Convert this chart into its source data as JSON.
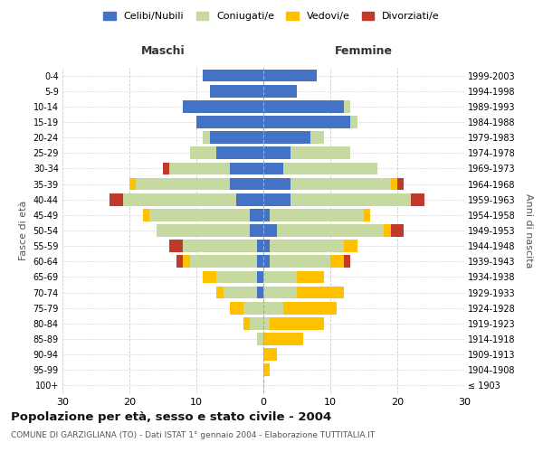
{
  "age_groups": [
    "100+",
    "95-99",
    "90-94",
    "85-89",
    "80-84",
    "75-79",
    "70-74",
    "65-69",
    "60-64",
    "55-59",
    "50-54",
    "45-49",
    "40-44",
    "35-39",
    "30-34",
    "25-29",
    "20-24",
    "15-19",
    "10-14",
    "5-9",
    "0-4"
  ],
  "birth_years": [
    "≤ 1903",
    "1904-1908",
    "1909-1913",
    "1914-1918",
    "1919-1923",
    "1924-1928",
    "1929-1933",
    "1934-1938",
    "1939-1943",
    "1944-1948",
    "1949-1953",
    "1954-1958",
    "1959-1963",
    "1964-1968",
    "1969-1973",
    "1974-1978",
    "1979-1983",
    "1984-1988",
    "1989-1993",
    "1994-1998",
    "1999-2003"
  ],
  "maschi": {
    "celibi": [
      0,
      0,
      0,
      0,
      0,
      0,
      1,
      1,
      1,
      1,
      2,
      2,
      4,
      5,
      5,
      7,
      8,
      10,
      12,
      8,
      9
    ],
    "coniugati": [
      0,
      0,
      0,
      1,
      2,
      3,
      5,
      6,
      10,
      11,
      14,
      15,
      17,
      14,
      9,
      4,
      1,
      0,
      0,
      0,
      0
    ],
    "vedovi": [
      0,
      0,
      0,
      0,
      1,
      2,
      1,
      2,
      1,
      0,
      0,
      1,
      0,
      1,
      0,
      0,
      0,
      0,
      0,
      0,
      0
    ],
    "divorziati": [
      0,
      0,
      0,
      0,
      0,
      0,
      0,
      0,
      1,
      2,
      0,
      0,
      2,
      0,
      1,
      0,
      0,
      0,
      0,
      0,
      0
    ]
  },
  "femmine": {
    "nubili": [
      0,
      0,
      0,
      0,
      0,
      0,
      0,
      0,
      1,
      1,
      2,
      1,
      4,
      4,
      3,
      4,
      7,
      13,
      12,
      5,
      8
    ],
    "coniugate": [
      0,
      0,
      0,
      0,
      1,
      3,
      5,
      5,
      9,
      11,
      16,
      14,
      18,
      15,
      14,
      9,
      2,
      1,
      1,
      0,
      0
    ],
    "vedove": [
      0,
      1,
      2,
      6,
      8,
      8,
      7,
      4,
      2,
      2,
      1,
      1,
      0,
      1,
      0,
      0,
      0,
      0,
      0,
      0,
      0
    ],
    "divorziate": [
      0,
      0,
      0,
      0,
      0,
      0,
      0,
      0,
      1,
      0,
      2,
      0,
      2,
      1,
      0,
      0,
      0,
      0,
      0,
      0,
      0
    ]
  },
  "colors": {
    "celibi": "#4472c4",
    "coniugati": "#c5d9a0",
    "vedovi": "#ffc000",
    "divorziati": "#c0392b"
  },
  "title": "Popolazione per età, sesso e stato civile - 2004",
  "subtitle": "COMUNE DI GARZIGLIANA (TO) - Dati ISTAT 1° gennaio 2004 - Elaborazione TUTTITALIA.IT",
  "xlabel_left": "Maschi",
  "xlabel_right": "Femmine",
  "ylabel_left": "Fasce di età",
  "ylabel_right": "Anni di nascita",
  "xlim": 30,
  "bg_color": "#ffffff",
  "grid_color": "#cccccc",
  "legend_labels": [
    "Celibi/Nubili",
    "Coniugati/e",
    "Vedovi/e",
    "Divorziati/e"
  ]
}
